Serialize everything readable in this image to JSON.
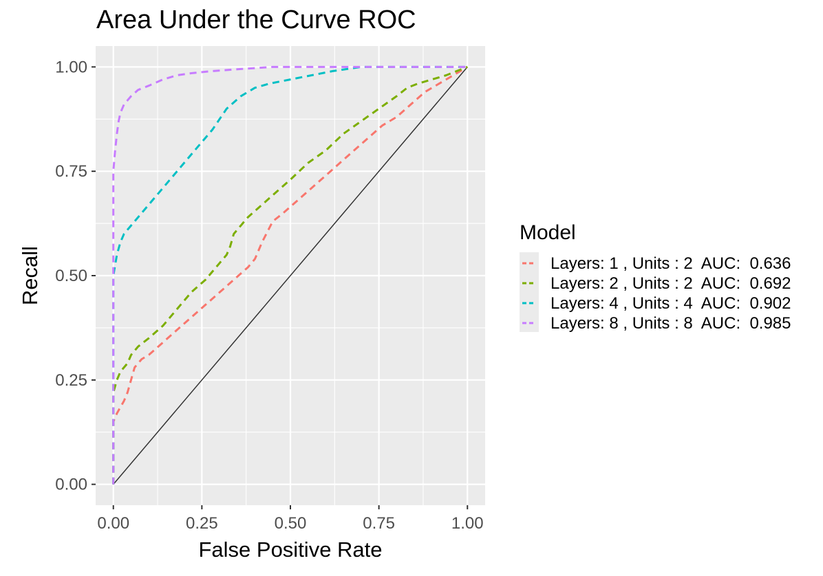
{
  "chart_data": {
    "type": "line",
    "title": "Area Under the Curve ROC",
    "xlabel": "False Positive Rate",
    "ylabel": "Recall",
    "xlim": [
      -0.05,
      1.05
    ],
    "ylim": [
      -0.05,
      1.05
    ],
    "x_ticks": [
      "0.00",
      "0.25",
      "0.50",
      "0.75",
      "1.00"
    ],
    "y_ticks": [
      "0.00",
      "0.25",
      "0.50",
      "0.75",
      "1.00"
    ],
    "grid": true,
    "background": "#ebebeb",
    "legend": {
      "title": "Model",
      "position": "right",
      "entries": [
        "Layers: 1 , Units : 2  AUC:  0.636",
        "Layers: 2 , Units : 2  AUC:  0.692",
        "Layers: 4 , Units : 4  AUC:  0.902",
        "Layers: 8 , Units : 8  AUC:  0.985"
      ]
    },
    "reference_line": {
      "x": [
        0,
        1
      ],
      "y": [
        0,
        1
      ],
      "color": "#333333"
    },
    "series": [
      {
        "name": "Layers: 1 , Units : 2  AUC:  0.636",
        "color": "#F8766D",
        "dash": "dashed",
        "x": [
          0.0,
          0.0,
          0.0,
          0.01,
          0.03,
          0.04,
          0.06,
          0.08,
          0.1,
          0.14,
          0.18,
          0.22,
          0.26,
          0.3,
          0.34,
          0.38,
          0.4,
          0.42,
          0.45,
          0.48,
          0.52,
          0.56,
          0.6,
          0.64,
          0.68,
          0.72,
          0.76,
          0.8,
          0.84,
          0.88,
          0.92,
          0.96,
          1.0
        ],
        "y": [
          0.0,
          0.1,
          0.15,
          0.17,
          0.2,
          0.22,
          0.28,
          0.3,
          0.31,
          0.34,
          0.37,
          0.4,
          0.43,
          0.46,
          0.49,
          0.52,
          0.54,
          0.58,
          0.63,
          0.65,
          0.68,
          0.71,
          0.74,
          0.77,
          0.8,
          0.83,
          0.86,
          0.88,
          0.91,
          0.94,
          0.96,
          0.98,
          1.0
        ]
      },
      {
        "name": "Layers: 2 , Units : 2  AUC:  0.692",
        "color": "#7CAE00",
        "dash": "dashed",
        "x": [
          0.0,
          0.0,
          0.0,
          0.01,
          0.02,
          0.04,
          0.05,
          0.07,
          0.1,
          0.14,
          0.18,
          0.22,
          0.26,
          0.3,
          0.32,
          0.33,
          0.34,
          0.38,
          0.42,
          0.46,
          0.5,
          0.55,
          0.6,
          0.65,
          0.7,
          0.75,
          0.8,
          0.83,
          0.86,
          0.9,
          0.94,
          0.97,
          1.0
        ],
        "y": [
          0.0,
          0.15,
          0.22,
          0.25,
          0.27,
          0.29,
          0.31,
          0.33,
          0.35,
          0.38,
          0.42,
          0.46,
          0.49,
          0.53,
          0.55,
          0.57,
          0.6,
          0.64,
          0.67,
          0.7,
          0.73,
          0.77,
          0.8,
          0.84,
          0.87,
          0.9,
          0.93,
          0.95,
          0.96,
          0.97,
          0.98,
          0.99,
          1.0
        ]
      },
      {
        "name": "Layers: 4 , Units : 4  AUC:  0.902",
        "color": "#00BFC4",
        "dash": "dashed",
        "x": [
          0.0,
          0.0,
          0.0,
          0.01,
          0.02,
          0.03,
          0.05,
          0.08,
          0.12,
          0.16,
          0.2,
          0.24,
          0.28,
          0.32,
          0.36,
          0.4,
          0.44,
          0.5,
          0.56,
          0.62,
          0.7,
          0.8,
          0.9,
          1.0
        ],
        "y": [
          0.0,
          0.3,
          0.5,
          0.55,
          0.58,
          0.6,
          0.62,
          0.65,
          0.69,
          0.73,
          0.77,
          0.81,
          0.85,
          0.9,
          0.93,
          0.95,
          0.96,
          0.97,
          0.98,
          0.99,
          1.0,
          1.0,
          1.0,
          1.0
        ]
      },
      {
        "name": "Layers: 8 , Units : 8  AUC:  0.985",
        "color": "#C77CFF",
        "dash": "dashed",
        "x": [
          0.0,
          0.0,
          0.0,
          0.005,
          0.01,
          0.015,
          0.02,
          0.03,
          0.05,
          0.07,
          0.1,
          0.14,
          0.18,
          0.22,
          0.28,
          0.36,
          0.45,
          0.6,
          0.8,
          1.0
        ],
        "y": [
          0.0,
          0.5,
          0.75,
          0.8,
          0.84,
          0.87,
          0.89,
          0.91,
          0.93,
          0.945,
          0.955,
          0.97,
          0.98,
          0.985,
          0.99,
          0.995,
          1.0,
          1.0,
          1.0,
          1.0
        ]
      }
    ]
  }
}
